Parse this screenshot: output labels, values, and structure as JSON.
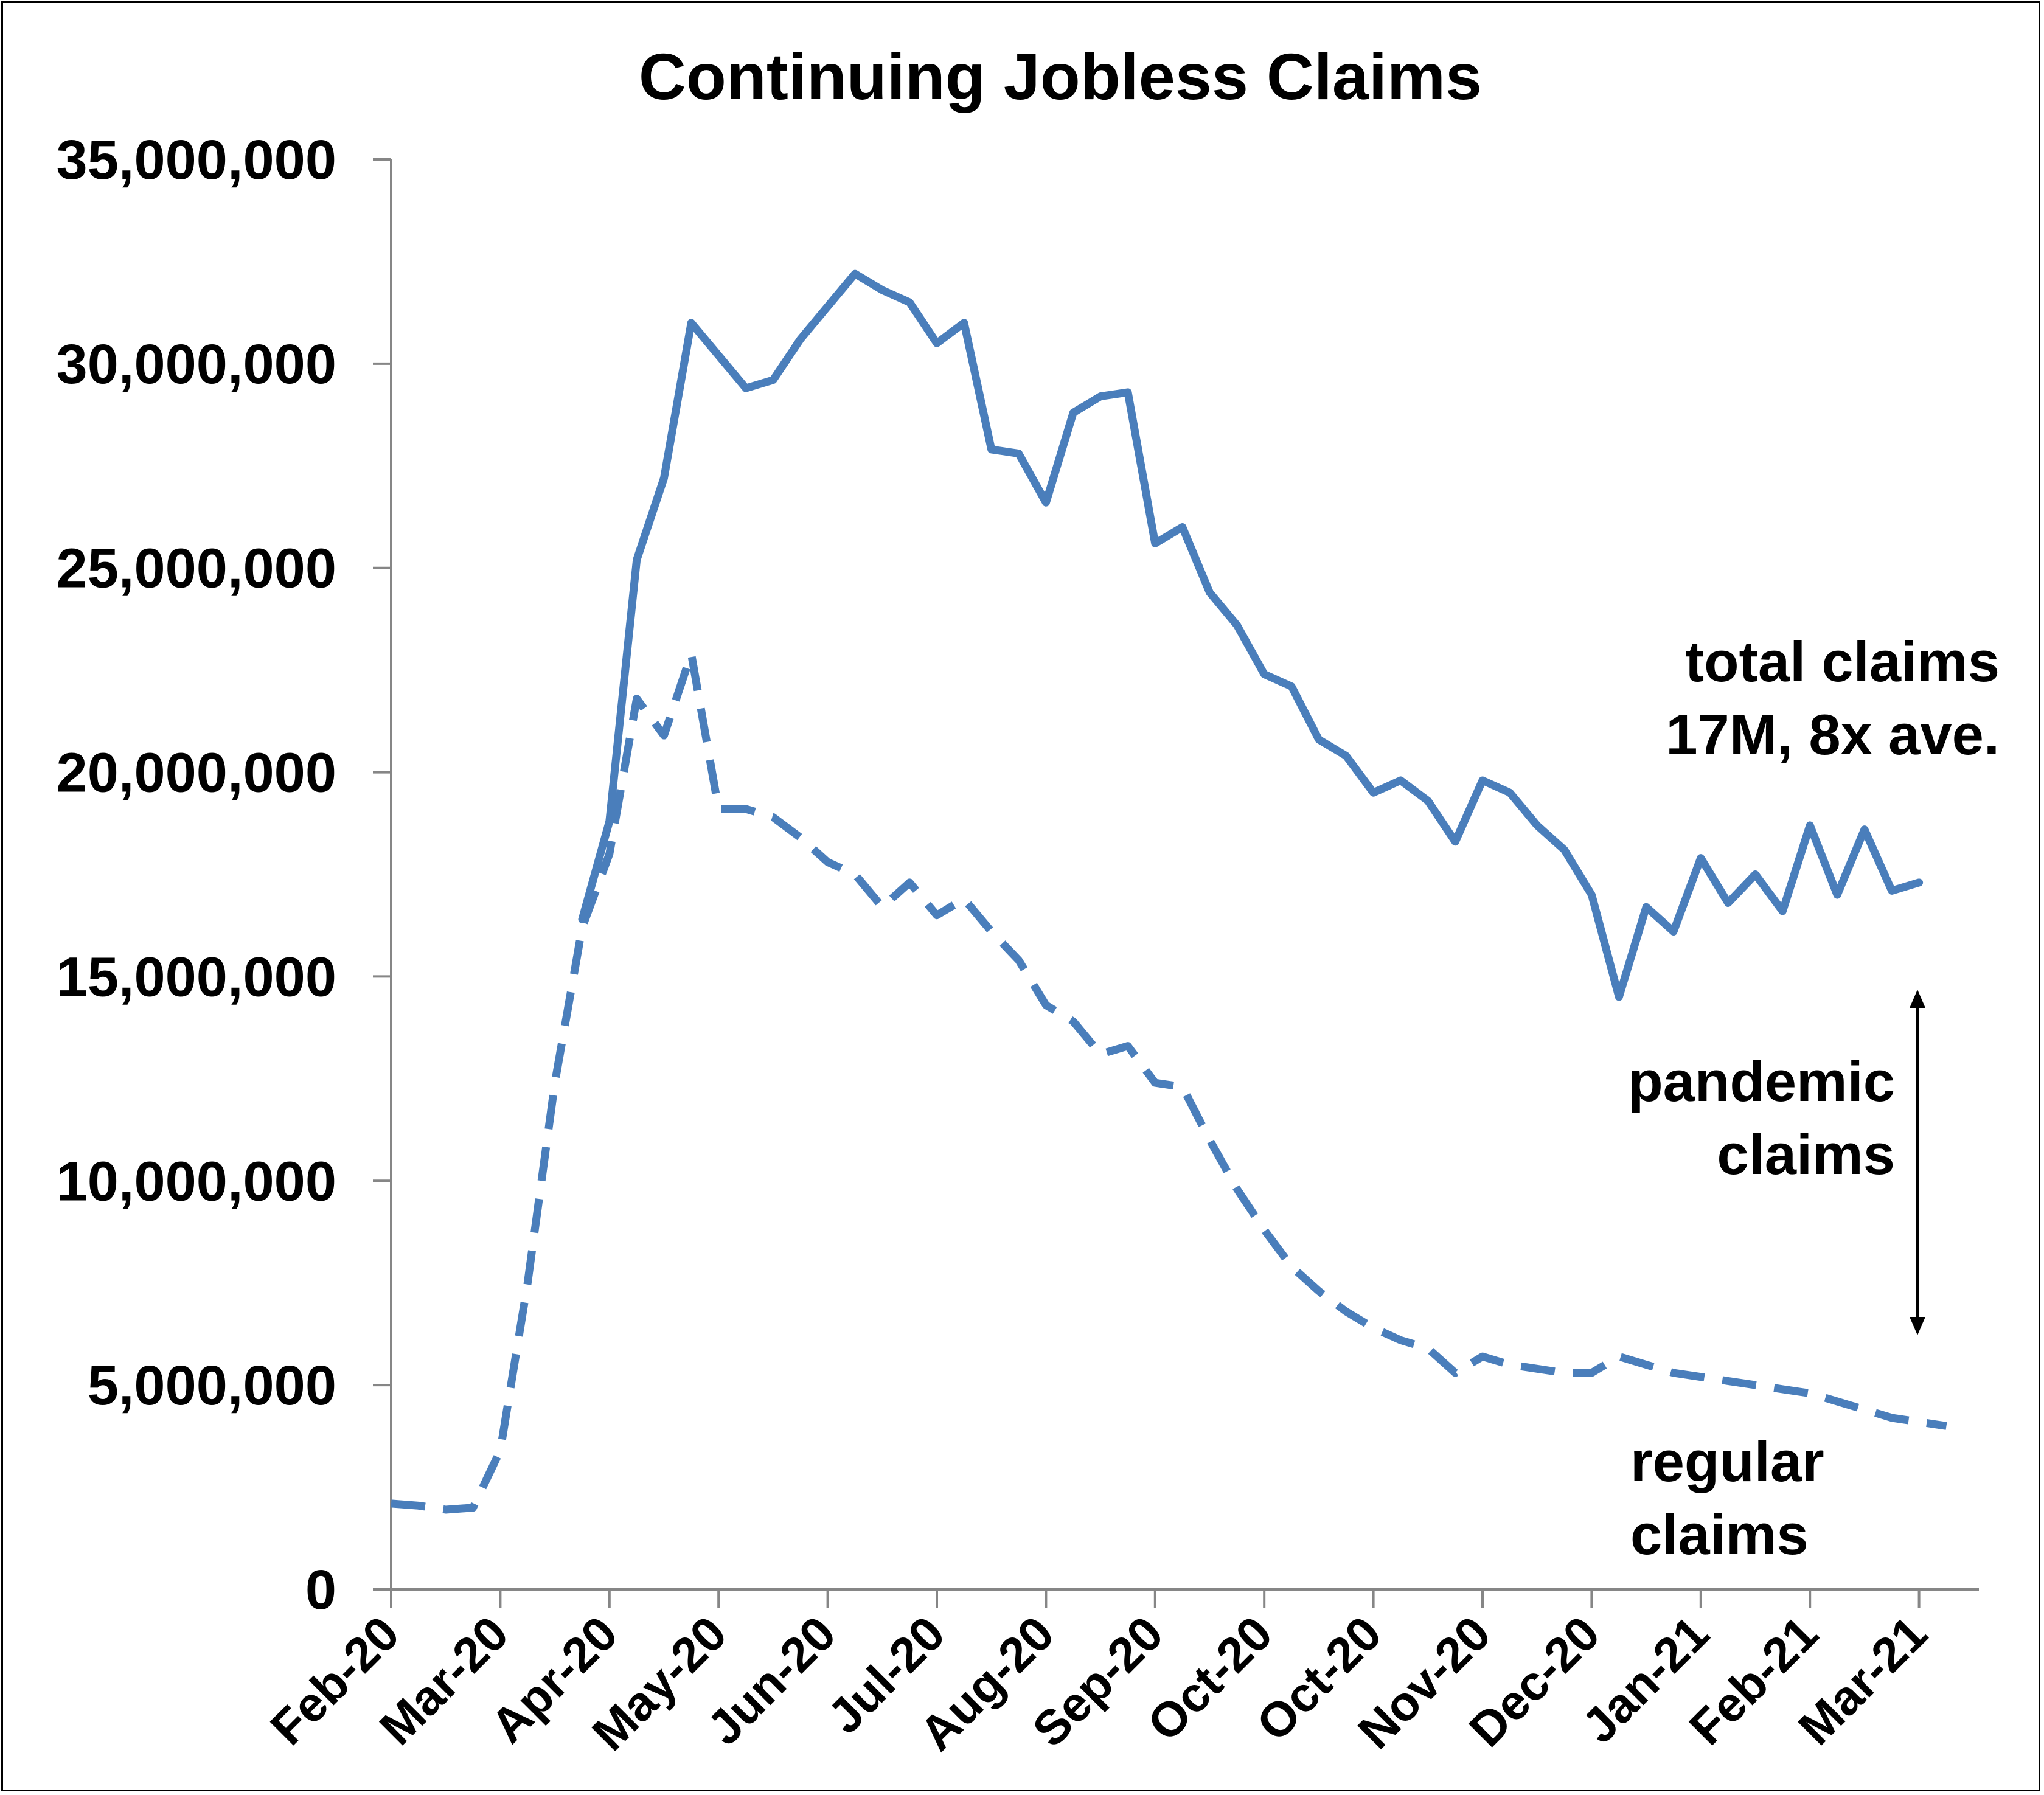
{
  "chart_data": {
    "type": "line",
    "title": "Continuing Jobless Claims",
    "xlabel": "",
    "ylabel": "",
    "ylim": [
      0,
      35000000
    ],
    "yticks": [
      0,
      5000000,
      10000000,
      15000000,
      20000000,
      25000000,
      30000000,
      35000000
    ],
    "ytick_labels": [
      "0",
      "5,000,000",
      "10,000,000",
      "15,000,000",
      "20,000,000",
      "25,000,000",
      "30,000,000",
      "35,000,000"
    ],
    "x_tick_labels": [
      "Feb-20",
      "Mar-20",
      "Apr-20",
      "May-20",
      "Jun-20",
      "Jul-20",
      "Aug-20",
      "Sep-20",
      "Oct-20",
      "Oct-20",
      "Nov-20",
      "Dec-20",
      "Jan-21",
      "Feb-21",
      "Mar-21"
    ],
    "x_tick_weeks": [
      0,
      4,
      8,
      12,
      16,
      20,
      24,
      28,
      32,
      36,
      40,
      44,
      48,
      52,
      56
    ],
    "grid": false,
    "legend": "none",
    "series": [
      {
        "name": "total claims",
        "style": "solid",
        "color": "#4a7ebb",
        "start_week": 7,
        "values": [
          16400000,
          18800000,
          25200000,
          27200000,
          31000000,
          30200000,
          29400000,
          29600000,
          30600000,
          31400000,
          32200000,
          31800000,
          31500000,
          30500000,
          31000000,
          27900000,
          27800000,
          26600000,
          28800000,
          29200000,
          29300000,
          25600000,
          26000000,
          24400000,
          23600000,
          22400000,
          22100000,
          20800000,
          20400000,
          19500000,
          19800000,
          19300000,
          18300000,
          19800000,
          19500000,
          18700000,
          18100000,
          17000000,
          14500000,
          16700000,
          16100000,
          17900000,
          16800000,
          17500000,
          16600000,
          18700000,
          17000000,
          18600000,
          17100000,
          17300000
        ]
      },
      {
        "name": "regular claims",
        "style": "dashed",
        "color": "#4a7ebb",
        "start_week": 0,
        "values": [
          2100000,
          2050000,
          1950000,
          2000000,
          3400000,
          7500000,
          12400000,
          16200000,
          18000000,
          21800000,
          20900000,
          22900000,
          19100000,
          19100000,
          18900000,
          18400000,
          17800000,
          17500000,
          16700000,
          17300000,
          16500000,
          16900000,
          16100000,
          15400000,
          14300000,
          13900000,
          13100000,
          13300000,
          12400000,
          12300000,
          11000000,
          9800000,
          8800000,
          7900000,
          7300000,
          6800000,
          6400000,
          6100000,
          5900000,
          5300000,
          5700000,
          5500000,
          5400000,
          5300000,
          5300000,
          5700000,
          5500000,
          5300000,
          5200000,
          5100000,
          5000000,
          4900000,
          4800000,
          4600000,
          4400000,
          4200000,
          4100000,
          4000000
        ]
      }
    ],
    "annotations": {
      "total_line1": "total claims",
      "total_line2": "17M, 8x ave.",
      "pandemic_line1": "pandemic",
      "pandemic_line2": "claims",
      "regular_line1": "regular",
      "regular_line2": "claims"
    }
  }
}
